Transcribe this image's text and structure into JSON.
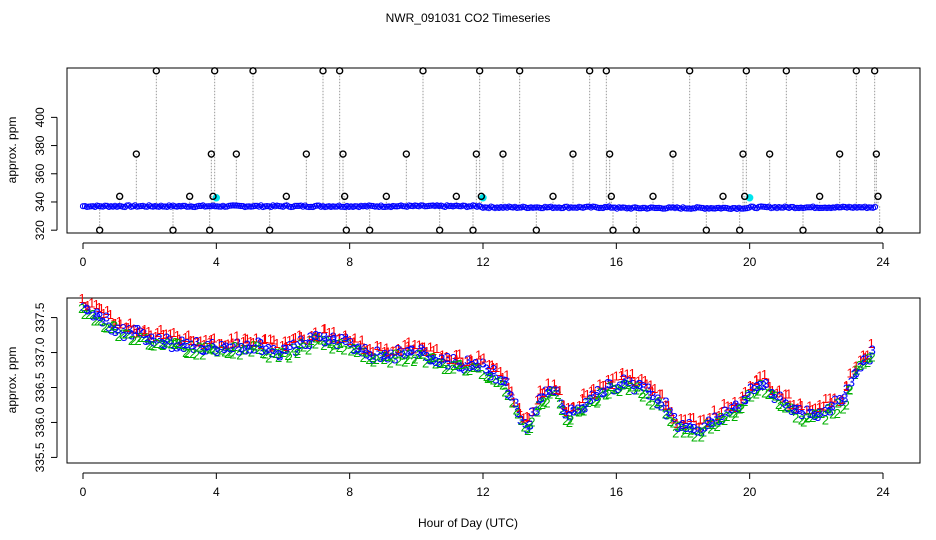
{
  "title": "NWR_091031  CO2 Timeseries",
  "xlabel": "Hour of Day (UTC)",
  "chart_data": [
    {
      "type": "scatter",
      "ylabel": "approx. ppm",
      "xlim": [
        0,
        24
      ],
      "ylim": [
        318,
        435
      ],
      "x_ticks": [
        0,
        4,
        8,
        12,
        16,
        20,
        24
      ],
      "x_tick_labels": [
        "0",
        "4",
        "8",
        "12",
        "16",
        "20",
        "24"
      ],
      "y_ticks": [
        320,
        360,
        400
      ],
      "y_tick_labels": [
        "320",
        "360",
        "400"
      ],
      "y_tick_labels_minor": [
        "340",
        "380"
      ],
      "baseline_ppm": 337,
      "spikes": [
        {
          "x": 0.5,
          "y": 320
        },
        {
          "x": 1.1,
          "y": 344
        },
        {
          "x": 1.6,
          "y": 374
        },
        {
          "x": 2.2,
          "y": 433
        },
        {
          "x": 2.7,
          "y": 320
        },
        {
          "x": 3.2,
          "y": 344
        },
        {
          "x": 3.8,
          "y": 320
        },
        {
          "x": 3.85,
          "y": 374
        },
        {
          "x": 3.9,
          "y": 344
        },
        {
          "x": 3.95,
          "y": 433
        },
        {
          "x": 4.6,
          "y": 374
        },
        {
          "x": 5.1,
          "y": 433
        },
        {
          "x": 5.6,
          "y": 320
        },
        {
          "x": 6.1,
          "y": 344
        },
        {
          "x": 6.7,
          "y": 374
        },
        {
          "x": 7.2,
          "y": 433
        },
        {
          "x": 7.7,
          "y": 433
        },
        {
          "x": 7.8,
          "y": 374
        },
        {
          "x": 7.85,
          "y": 344
        },
        {
          "x": 7.9,
          "y": 320
        },
        {
          "x": 8.6,
          "y": 320
        },
        {
          "x": 9.1,
          "y": 344
        },
        {
          "x": 9.7,
          "y": 374
        },
        {
          "x": 10.2,
          "y": 433
        },
        {
          "x": 10.7,
          "y": 320
        },
        {
          "x": 11.2,
          "y": 344
        },
        {
          "x": 11.7,
          "y": 320
        },
        {
          "x": 11.8,
          "y": 374
        },
        {
          "x": 11.9,
          "y": 433
        },
        {
          "x": 11.95,
          "y": 344
        },
        {
          "x": 12.6,
          "y": 374
        },
        {
          "x": 13.1,
          "y": 433
        },
        {
          "x": 13.6,
          "y": 320
        },
        {
          "x": 14.1,
          "y": 344
        },
        {
          "x": 14.7,
          "y": 374
        },
        {
          "x": 15.2,
          "y": 433
        },
        {
          "x": 15.7,
          "y": 433
        },
        {
          "x": 15.8,
          "y": 374
        },
        {
          "x": 15.85,
          "y": 344
        },
        {
          "x": 15.9,
          "y": 320
        },
        {
          "x": 16.6,
          "y": 320
        },
        {
          "x": 17.1,
          "y": 344
        },
        {
          "x": 17.7,
          "y": 374
        },
        {
          "x": 18.2,
          "y": 433
        },
        {
          "x": 18.7,
          "y": 320
        },
        {
          "x": 19.2,
          "y": 344
        },
        {
          "x": 19.7,
          "y": 320
        },
        {
          "x": 19.8,
          "y": 374
        },
        {
          "x": 19.85,
          "y": 344
        },
        {
          "x": 19.9,
          "y": 433
        },
        {
          "x": 20.6,
          "y": 374
        },
        {
          "x": 21.1,
          "y": 433
        },
        {
          "x": 21.6,
          "y": 320
        },
        {
          "x": 22.1,
          "y": 344
        },
        {
          "x": 22.7,
          "y": 374
        },
        {
          "x": 23.2,
          "y": 433
        },
        {
          "x": 23.75,
          "y": 433
        },
        {
          "x": 23.8,
          "y": 374
        },
        {
          "x": 23.85,
          "y": 344
        },
        {
          "x": 23.9,
          "y": 320
        }
      ],
      "highlight_points": [
        {
          "x": 4.0,
          "y": 343
        },
        {
          "x": 12.0,
          "y": 343
        },
        {
          "x": 20.0,
          "y": 343
        }
      ],
      "colors": {
        "spike": "#000000",
        "baseline": "#0000ff",
        "highlight": "#00e5ee",
        "connector": "#999999"
      }
    },
    {
      "type": "scatter",
      "ylabel": "approx. ppm",
      "xlim": [
        0,
        24
      ],
      "ylim": [
        335.42,
        337.78
      ],
      "x_ticks": [
        0,
        4,
        8,
        12,
        16,
        20,
        24
      ],
      "x_tick_labels": [
        "0",
        "4",
        "8",
        "12",
        "16",
        "20",
        "24"
      ],
      "y_ticks": [
        335.5,
        336.5,
        337.5
      ],
      "y_tick_labels": [
        "335.5",
        "336.5",
        "337.5"
      ],
      "y_tick_labels_minor": [
        "336.0",
        "337.0"
      ],
      "trend_knots": [
        {
          "x": 0.0,
          "y": 337.65
        },
        {
          "x": 1.2,
          "y": 337.3
        },
        {
          "x": 2.5,
          "y": 337.15
        },
        {
          "x": 4.0,
          "y": 337.05
        },
        {
          "x": 5.0,
          "y": 337.1
        },
        {
          "x": 6.0,
          "y": 337.0
        },
        {
          "x": 7.0,
          "y": 337.2
        },
        {
          "x": 7.8,
          "y": 337.15
        },
        {
          "x": 8.8,
          "y": 336.95
        },
        {
          "x": 10.0,
          "y": 337.0
        },
        {
          "x": 11.0,
          "y": 336.85
        },
        {
          "x": 12.0,
          "y": 336.8
        },
        {
          "x": 12.6,
          "y": 336.6
        },
        {
          "x": 13.0,
          "y": 336.2
        },
        {
          "x": 13.35,
          "y": 335.9
        },
        {
          "x": 13.7,
          "y": 336.35
        },
        {
          "x": 14.2,
          "y": 336.45
        },
        {
          "x": 14.5,
          "y": 336.1
        },
        {
          "x": 15.0,
          "y": 336.25
        },
        {
          "x": 15.6,
          "y": 336.45
        },
        {
          "x": 16.3,
          "y": 336.6
        },
        {
          "x": 17.0,
          "y": 336.4
        },
        {
          "x": 17.5,
          "y": 336.2
        },
        {
          "x": 17.8,
          "y": 335.95
        },
        {
          "x": 18.5,
          "y": 335.9
        },
        {
          "x": 19.2,
          "y": 336.1
        },
        {
          "x": 19.7,
          "y": 336.2
        },
        {
          "x": 20.0,
          "y": 336.45
        },
        {
          "x": 20.4,
          "y": 336.55
        },
        {
          "x": 21.0,
          "y": 336.3
        },
        {
          "x": 21.6,
          "y": 336.1
        },
        {
          "x": 22.2,
          "y": 336.15
        },
        {
          "x": 22.8,
          "y": 336.3
        },
        {
          "x": 23.2,
          "y": 336.75
        },
        {
          "x": 23.7,
          "y": 337.0
        }
      ],
      "series": [
        {
          "name": "1",
          "marker": "1",
          "color": "#ff0000",
          "offset_ppm": 0.09
        },
        {
          "name": "2",
          "marker": "2",
          "color": "#00b000",
          "offset_ppm": -0.06
        },
        {
          "name": "3",
          "marker": "3",
          "color": "#0000ff",
          "offset_ppm": 0.0
        }
      ]
    }
  ]
}
